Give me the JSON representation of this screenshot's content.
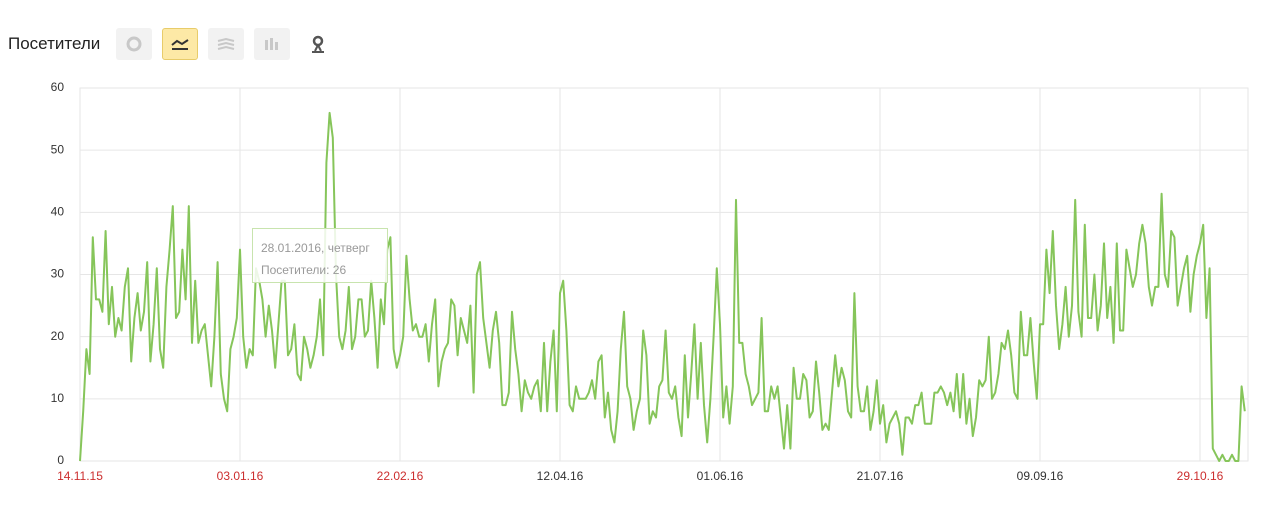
{
  "header": {
    "title": "Посетители"
  },
  "chart_data": {
    "type": "line",
    "categories": [
      "14.11.15",
      null,
      null,
      null,
      null,
      null,
      null,
      null,
      null,
      null,
      null,
      null,
      null,
      null,
      null,
      null,
      null,
      null,
      null,
      null,
      null,
      null,
      null,
      null,
      null,
      null,
      null,
      null,
      null,
      null,
      null,
      null,
      null,
      null,
      null,
      null,
      null,
      null,
      null,
      null,
      null,
      null,
      null,
      null,
      null,
      null,
      null,
      null,
      null,
      null,
      "03.01.16",
      null,
      null,
      null,
      null,
      null,
      null,
      null,
      null,
      null,
      null,
      null,
      null,
      null,
      null,
      null,
      null,
      null,
      null,
      null,
      null,
      null,
      null,
      null,
      null,
      null,
      null,
      null,
      null,
      null,
      null,
      null,
      null,
      null,
      null,
      null,
      null,
      null,
      null,
      null,
      null,
      null,
      null,
      null,
      null,
      null,
      null,
      null,
      null,
      null,
      "22.02.16",
      null,
      null,
      null,
      null,
      null,
      null,
      null,
      null,
      null,
      null,
      null,
      null,
      null,
      null,
      null,
      null,
      null,
      null,
      null,
      null,
      null,
      null,
      null,
      null,
      null,
      null,
      null,
      null,
      null,
      null,
      null,
      null,
      null,
      null,
      null,
      null,
      null,
      null,
      null,
      null,
      null,
      null,
      null,
      null,
      null,
      null,
      null,
      null,
      null,
      "12.04.16",
      null,
      null,
      null,
      null,
      null,
      null,
      null,
      null,
      null,
      null,
      null,
      null,
      null,
      null,
      null,
      null,
      null,
      null,
      null,
      null,
      null,
      null,
      null,
      null,
      null,
      null,
      null,
      null,
      null,
      null,
      null,
      null,
      null,
      null,
      null,
      null,
      null,
      null,
      null,
      null,
      null,
      null,
      null,
      null,
      null,
      null,
      null,
      null,
      null,
      "01.06.16",
      null,
      null,
      null,
      null,
      null,
      null,
      null,
      null,
      null,
      null,
      null,
      null,
      null,
      null,
      null,
      null,
      null,
      null,
      null,
      null,
      null,
      null,
      null,
      null,
      null,
      null,
      null,
      null,
      null,
      null,
      null,
      null,
      null,
      null,
      null,
      null,
      null,
      null,
      null,
      null,
      null,
      null,
      null,
      null,
      null,
      null,
      null,
      null,
      null,
      "21.07.16",
      null,
      null,
      null,
      null,
      null,
      null,
      null,
      null,
      null,
      null,
      null,
      null,
      null,
      null,
      null,
      null,
      null,
      null,
      null,
      null,
      null,
      null,
      null,
      null,
      null,
      null,
      null,
      null,
      null,
      null,
      null,
      null,
      null,
      null,
      null,
      null,
      null,
      null,
      null,
      null,
      null,
      null,
      null,
      null,
      null,
      null,
      null,
      null,
      null,
      "09.09.16",
      null,
      null,
      null,
      null,
      null,
      null,
      null,
      null,
      null,
      null,
      null,
      null,
      null,
      null,
      null,
      null,
      null,
      null,
      null,
      null,
      null,
      null,
      null,
      null,
      null,
      null,
      null,
      null,
      null,
      null,
      null,
      null,
      null,
      null,
      null,
      null,
      null,
      null,
      null,
      null,
      null,
      null,
      null,
      null,
      null,
      null,
      null,
      null,
      null,
      "29.10.16",
      null,
      null,
      null,
      null,
      null,
      null,
      null,
      null,
      null,
      null,
      null,
      null,
      null,
      null
    ],
    "series": [
      {
        "name": "Посетители",
        "color": "#86c55a",
        "values": [
          0,
          8,
          18,
          14,
          36,
          26,
          26,
          24,
          37,
          22,
          28,
          20,
          23,
          21,
          28,
          31,
          16,
          23,
          27,
          21,
          24,
          32,
          16,
          22,
          31,
          18,
          15,
          28,
          34,
          41,
          23,
          24,
          34,
          26,
          41,
          19,
          29,
          19,
          21,
          22,
          17,
          12,
          20,
          32,
          14,
          10,
          8,
          18,
          20,
          23,
          34,
          20,
          15,
          18,
          17,
          31,
          29,
          26,
          20,
          25,
          21,
          15,
          22,
          29,
          29,
          17,
          18,
          22,
          14,
          13,
          20,
          18,
          15,
          17,
          20,
          26,
          17,
          48,
          56,
          52,
          30,
          20,
          18,
          21,
          28,
          18,
          20,
          26,
          26,
          20,
          21,
          29,
          23,
          15,
          26,
          22,
          34,
          36,
          18,
          15,
          17,
          20,
          33,
          26,
          21,
          22,
          20,
          20,
          22,
          16,
          22,
          26,
          12,
          16,
          18,
          19,
          26,
          25,
          17,
          23,
          21,
          19,
          25,
          11,
          30,
          32,
          23,
          19,
          15,
          21,
          24,
          19,
          9,
          9,
          11,
          24,
          18,
          14,
          8,
          13,
          11,
          10,
          12,
          13,
          8,
          19,
          8,
          16,
          21,
          8,
          27,
          29,
          21,
          9,
          8,
          12,
          10,
          10,
          10,
          11,
          13,
          10,
          16,
          17,
          7,
          11,
          5,
          3,
          8,
          18,
          24,
          12,
          10,
          5,
          8,
          10,
          21,
          17,
          6,
          8,
          7,
          12,
          13,
          21,
          11,
          10,
          12,
          7,
          4,
          17,
          7,
          14,
          22,
          10,
          19,
          9,
          3,
          10,
          20,
          31,
          22,
          7,
          12,
          6,
          12,
          42,
          19,
          19,
          14,
          12,
          9,
          10,
          11,
          23,
          8,
          8,
          12,
          10,
          12,
          7,
          2,
          9,
          2,
          15,
          10,
          10,
          14,
          13,
          7,
          8,
          16,
          11,
          5,
          6,
          5,
          11,
          17,
          12,
          15,
          13,
          8,
          7,
          27,
          12,
          8,
          8,
          12,
          5,
          8,
          13,
          6,
          9,
          3,
          6,
          7,
          8,
          6,
          1,
          7,
          7,
          6,
          9,
          9,
          11,
          6,
          6,
          6,
          11,
          11,
          12,
          11,
          9,
          11,
          8,
          14,
          7,
          14,
          6,
          10,
          4,
          7,
          13,
          12,
          13,
          20,
          10,
          11,
          14,
          19,
          18,
          21,
          17,
          11,
          10,
          24,
          17,
          17,
          23,
          16,
          10,
          22,
          22,
          34,
          27,
          37,
          25,
          18,
          22,
          28,
          20,
          25,
          42,
          24,
          20,
          38,
          23,
          23,
          30,
          21,
          25,
          35,
          23,
          28,
          19,
          35,
          21,
          21,
          34,
          31,
          28,
          30,
          35,
          38,
          35,
          28,
          25,
          28,
          28,
          43,
          30,
          28,
          37,
          36,
          25,
          28,
          31,
          33,
          24,
          30,
          33,
          35,
          38,
          23,
          31,
          2,
          1,
          0,
          1,
          0,
          0,
          1,
          0,
          0,
          12,
          8
        ]
      }
    ],
    "ylim": [
      0,
      60
    ],
    "yticks": [
      0,
      10,
      20,
      30,
      40,
      50,
      60
    ],
    "grid": true,
    "red_labels": [
      "14.11.15",
      "03.01.16",
      "22.02.16",
      "29.10.16"
    ],
    "red_label_color": "#cc2e2e",
    "tooltip": {
      "date": "28.01.2016, четверг",
      "text": "Посетители: 26"
    }
  }
}
